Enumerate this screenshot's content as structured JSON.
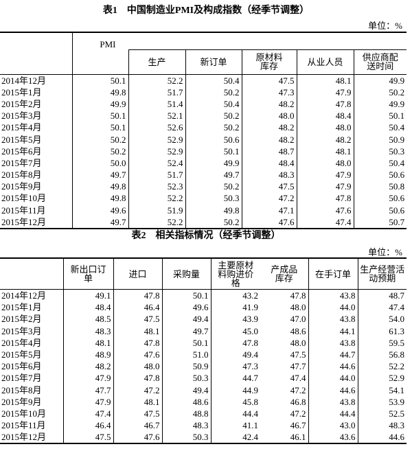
{
  "table1": {
    "title": "表1　中国制造业PMI及构成指数（经季节调整）",
    "unit": "单位：%",
    "columns": [
      "PMI",
      "生产",
      "新订单",
      "原材料库存",
      "从业人员",
      "供应商配送时间"
    ],
    "rows": [
      {
        "month": "2014年12月",
        "values": [
          "50.1",
          "52.2",
          "50.4",
          "47.5",
          "48.1",
          "49.9"
        ]
      },
      {
        "month": "2015年1月",
        "values": [
          "49.8",
          "51.7",
          "50.2",
          "47.3",
          "47.9",
          "50.2"
        ]
      },
      {
        "month": "2015年2月",
        "values": [
          "49.9",
          "51.4",
          "50.4",
          "48.2",
          "47.8",
          "49.9"
        ]
      },
      {
        "month": "2015年3月",
        "values": [
          "50.1",
          "52.1",
          "50.2",
          "48.0",
          "48.4",
          "50.1"
        ]
      },
      {
        "month": "2015年4月",
        "values": [
          "50.1",
          "52.6",
          "50.2",
          "48.2",
          "48.0",
          "50.4"
        ]
      },
      {
        "month": "2015年5月",
        "values": [
          "50.2",
          "52.9",
          "50.6",
          "48.2",
          "48.2",
          "50.9"
        ]
      },
      {
        "month": "2015年6月",
        "values": [
          "50.2",
          "52.9",
          "50.1",
          "48.7",
          "48.1",
          "50.3"
        ]
      },
      {
        "month": "2015年7月",
        "values": [
          "50.0",
          "52.4",
          "49.9",
          "48.4",
          "48.0",
          "50.4"
        ]
      },
      {
        "month": "2015年8月",
        "values": [
          "49.7",
          "51.7",
          "49.7",
          "48.3",
          "47.9",
          "50.6"
        ]
      },
      {
        "month": "2015年9月",
        "values": [
          "49.8",
          "52.3",
          "50.2",
          "47.5",
          "47.9",
          "50.8"
        ]
      },
      {
        "month": "2015年10月",
        "values": [
          "49.8",
          "52.2",
          "50.3",
          "47.2",
          "47.8",
          "50.6"
        ]
      },
      {
        "month": "2015年11月",
        "values": [
          "49.6",
          "51.9",
          "49.8",
          "47.1",
          "47.6",
          "50.6"
        ]
      },
      {
        "month": "2015年12月",
        "values": [
          "49.7",
          "52.2",
          "50.2",
          "47.6",
          "47.4",
          "50.7"
        ]
      }
    ]
  },
  "table2": {
    "title": "表2　相关指标情况（经季节调整）",
    "unit": "单位：%",
    "columns": [
      "新出口订单",
      "进口",
      "采购量",
      "主要原材料购进价格",
      "产成品库存",
      "在手订单",
      "生产经营活动预期"
    ],
    "rows": [
      {
        "month": "2014年12月",
        "values": [
          "49.1",
          "47.8",
          "50.1",
          "43.2",
          "47.8",
          "43.8",
          "48.7"
        ]
      },
      {
        "month": "2015年1月",
        "values": [
          "48.4",
          "46.4",
          "49.6",
          "41.9",
          "48.0",
          "44.0",
          "47.4"
        ]
      },
      {
        "month": "2015年2月",
        "values": [
          "48.5",
          "47.5",
          "49.4",
          "43.9",
          "47.0",
          "43.8",
          "54.0"
        ]
      },
      {
        "month": "2015年3月",
        "values": [
          "48.3",
          "48.1",
          "49.7",
          "45.0",
          "48.6",
          "44.1",
          "61.3"
        ]
      },
      {
        "month": "2015年4月",
        "values": [
          "48.1",
          "47.8",
          "50.1",
          "47.8",
          "48.0",
          "43.8",
          "59.5"
        ]
      },
      {
        "month": "2015年5月",
        "values": [
          "48.9",
          "47.6",
          "51.0",
          "49.4",
          "47.5",
          "44.7",
          "56.8"
        ]
      },
      {
        "month": "2015年6月",
        "values": [
          "48.2",
          "48.0",
          "50.9",
          "47.3",
          "47.7",
          "44.6",
          "52.2"
        ]
      },
      {
        "month": "2015年7月",
        "values": [
          "47.9",
          "47.8",
          "50.3",
          "44.7",
          "47.4",
          "44.0",
          "52.9"
        ]
      },
      {
        "month": "2015年8月",
        "values": [
          "47.7",
          "47.2",
          "49.4",
          "44.9",
          "47.2",
          "44.6",
          "54.1"
        ]
      },
      {
        "month": "2015年9月",
        "values": [
          "47.9",
          "48.1",
          "48.6",
          "45.8",
          "46.8",
          "43.8",
          "53.9"
        ]
      },
      {
        "month": "2015年10月",
        "values": [
          "47.4",
          "47.5",
          "48.8",
          "44.4",
          "47.2",
          "44.4",
          "52.5"
        ]
      },
      {
        "month": "2015年11月",
        "values": [
          "46.4",
          "46.7",
          "48.3",
          "41.1",
          "46.7",
          "43.0",
          "48.3"
        ]
      },
      {
        "month": "2015年12月",
        "values": [
          "47.5",
          "47.6",
          "50.3",
          "42.4",
          "46.1",
          "43.6",
          "44.6"
        ]
      }
    ]
  }
}
